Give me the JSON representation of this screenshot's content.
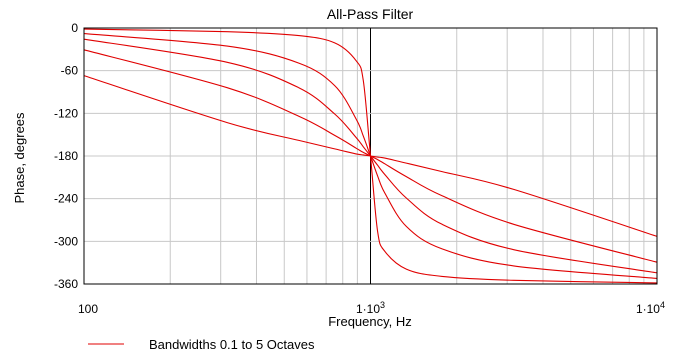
{
  "chart_data": {
    "type": "line",
    "title": "All-Pass Filter",
    "xlabel": "Frequency, Hz",
    "ylabel": "Phase, degrees",
    "xscale": "log",
    "xlim": [
      100,
      10000
    ],
    "ylim": [
      -360,
      0
    ],
    "grid": true,
    "x_ticks": [
      {
        "value": 100,
        "label": "100",
        "sup": ""
      },
      {
        "value": 1000,
        "label": "1·10",
        "sup": "3"
      },
      {
        "value": 10000,
        "label": "1·10",
        "sup": "4"
      }
    ],
    "y_ticks": [
      0,
      -60,
      -120,
      -180,
      -240,
      -300,
      -360
    ],
    "center_frequency": 1000,
    "legend": {
      "label": "Bandwidths 0.1 to 5 Octaves",
      "placement": "bottom-left"
    },
    "series_color": "#e00000",
    "bandwidths_octaves": [
      0.1,
      0.5,
      1,
      2,
      5
    ],
    "series": [
      {
        "bandwidth": 0.1,
        "x": [
          100,
          316,
          562,
          750,
          891,
          944,
          1000,
          1059,
          1122,
          1333,
          1778,
          3162,
          10000
        ],
        "y": [
          -1.6,
          -5.2,
          -10.7,
          -21,
          -46,
          -74,
          -180,
          -286,
          -314,
          -339,
          -349.3,
          -354.8,
          -358.4
        ]
      },
      {
        "bandwidth": 0.5,
        "x": [
          100,
          316,
          562,
          750,
          891,
          944,
          1000,
          1059,
          1122,
          1333,
          1778,
          3162,
          10000
        ],
        "y": [
          -7.9,
          -25.4,
          -49.3,
          -81,
          -128,
          -152,
          -180,
          -208,
          -232,
          -279,
          -310.7,
          -334.6,
          -352.1
        ]
      },
      {
        "bandwidth": 1,
        "x": [
          100,
          316,
          562,
          750,
          891,
          944,
          1000,
          1059,
          1122,
          1333,
          1778,
          3162,
          10000
        ],
        "y": [
          -15.7,
          -48.2,
          -84,
          -121,
          -154,
          -167,
          -180,
          -193,
          -206,
          -239,
          -276,
          -311.8,
          -344.3
        ]
      },
      {
        "bandwidth": 2,
        "x": [
          100,
          316,
          562,
          750,
          891,
          944,
          1000,
          1059,
          1122,
          1333,
          1778,
          3162,
          10000
        ],
        "y": [
          -30.7,
          -84,
          -124,
          -151,
          -169,
          -175,
          -180,
          -185,
          -191,
          -209,
          -236,
          -276,
          -329.3
        ]
      },
      {
        "bandwidth": 5,
        "x": [
          100,
          316,
          562,
          750,
          891,
          944,
          1000,
          1059,
          1122,
          1333,
          1778,
          3162,
          10000
        ],
        "y": [
          -67,
          -133,
          -158,
          -170,
          -177,
          -178.5,
          -180,
          -181.5,
          -183,
          -190,
          -202,
          -227,
          -293
        ]
      }
    ]
  }
}
